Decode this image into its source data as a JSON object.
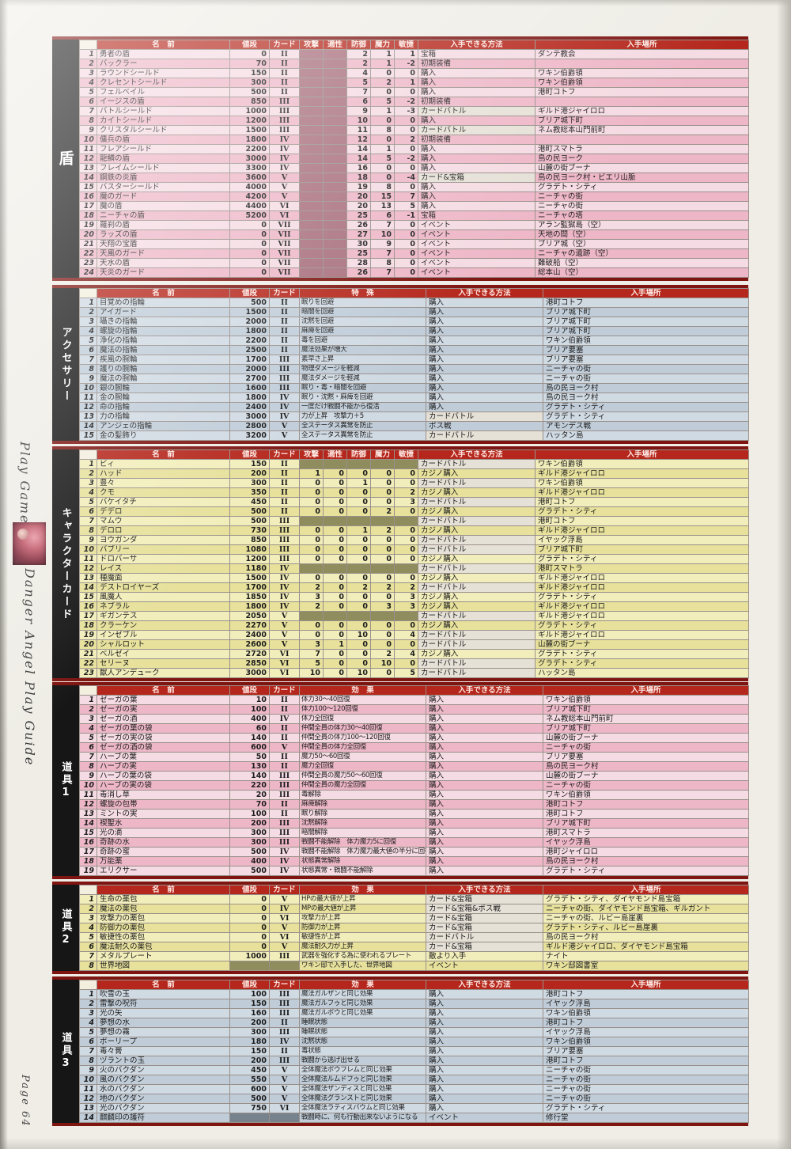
{
  "sidebar": {
    "section": "Play Game",
    "guide_title": "Danger Angel Play Guide",
    "page_label": "Page 64"
  },
  "tables": [
    {
      "id": "shields",
      "label": "盾",
      "type": "stats",
      "theme": "pink",
      "columns": [
        "名　前",
        "値段",
        "カード",
        "攻撃",
        "適性",
        "防御",
        "魔力",
        "敏捷",
        "入手できる方法",
        "入手場所"
      ],
      "rows": [
        [
          "1",
          "勇者の盾",
          "0",
          "II",
          null,
          null,
          "2",
          "1",
          "1",
          "宝箱",
          "ダンテ教会"
        ],
        [
          "2",
          "バックラー",
          "70",
          "II",
          null,
          null,
          "2",
          "1",
          "-2",
          "初期装備",
          ""
        ],
        [
          "3",
          "ラウンドシールド",
          "150",
          "II",
          null,
          null,
          "4",
          "0",
          "0",
          "購入",
          "ワキン伯爵領"
        ],
        [
          "4",
          "クレセントシールド",
          "300",
          "II",
          null,
          null,
          "5",
          "2",
          "1",
          "購入",
          "ワキン伯爵領"
        ],
        [
          "5",
          "フェルベイル",
          "500",
          "II",
          null,
          null,
          "7",
          "0",
          "0",
          "購入",
          "港町コトフ"
        ],
        [
          "6",
          "イージスの盾",
          "850",
          "III",
          null,
          null,
          "6",
          "5",
          "-2",
          "初期装備",
          ""
        ],
        [
          "7",
          "バトルシールド",
          "1000",
          "III",
          null,
          null,
          "9",
          "1",
          "-3",
          "カードバトル",
          "ギルド港ジャイロロ"
        ],
        [
          "8",
          "カイトシールド",
          "1200",
          "III",
          null,
          null,
          "10",
          "0",
          "0",
          "購入",
          "ブリア城下町"
        ],
        [
          "9",
          "クリスタルシールド",
          "1500",
          "III",
          null,
          null,
          "11",
          "8",
          "0",
          "カードバトル",
          "ネム教総本山門前町"
        ],
        [
          "10",
          "傭兵の盾",
          "1800",
          "IV",
          null,
          null,
          "12",
          "0",
          "2",
          "初期装備",
          ""
        ],
        [
          "11",
          "フレアシールド",
          "2200",
          "IV",
          null,
          null,
          "14",
          "1",
          "0",
          "購入",
          "港町スマトラ"
        ],
        [
          "12",
          "龍鱗の盾",
          "3000",
          "IV",
          null,
          null,
          "14",
          "5",
          "-2",
          "購入",
          "鳥の民ヨーク"
        ],
        [
          "13",
          "フレイムシールド",
          "3300",
          "IV",
          null,
          null,
          "16",
          "0",
          "0",
          "購入",
          "山麓の街ブーナ"
        ],
        [
          "14",
          "鋼鉄の炎盾",
          "3600",
          "V",
          null,
          null,
          "18",
          "0",
          "-4",
          "カード&宝箱",
          "鳥の民ヨーク村・ビエリ山脈"
        ],
        [
          "15",
          "バスターシールド",
          "4000",
          "V",
          null,
          null,
          "19",
          "8",
          "0",
          "購入",
          "グラデト・シティ"
        ],
        [
          "16",
          "魔のガード",
          "4200",
          "V",
          null,
          null,
          "20",
          "15",
          "7",
          "購入",
          "ニーチャの街"
        ],
        [
          "17",
          "魔の盾",
          "4400",
          "VI",
          null,
          null,
          "20",
          "13",
          "5",
          "購入",
          "ニーチャの街"
        ],
        [
          "18",
          "ニーチャの盾",
          "5200",
          "VI",
          null,
          null,
          "25",
          "6",
          "-1",
          "宝箱",
          "ニーチャの塔"
        ],
        [
          "19",
          "羅刹の盾",
          "0",
          "VII",
          null,
          null,
          "26",
          "7",
          "0",
          "イベント",
          "アラン監獄島（空）"
        ],
        [
          "20",
          "ラッズの盾",
          "0",
          "VII",
          null,
          null,
          "27",
          "10",
          "0",
          "イベント",
          "天地の間（空）"
        ],
        [
          "21",
          "天翔の宝盾",
          "0",
          "VII",
          null,
          null,
          "30",
          "9",
          "0",
          "イベント",
          "ブリア城（空）"
        ],
        [
          "22",
          "天風のガード",
          "0",
          "VII",
          null,
          null,
          "25",
          "7",
          "0",
          "イベント",
          "ニーチャの遺跡（空）"
        ],
        [
          "23",
          "天水の盾",
          "0",
          "VII",
          null,
          null,
          "28",
          "8",
          "0",
          "イベント",
          "難破船（空）"
        ],
        [
          "24",
          "天炎のガード",
          "0",
          "VII",
          null,
          null,
          "26",
          "7",
          "0",
          "イベント",
          "総本山（空）"
        ]
      ]
    },
    {
      "id": "accessories",
      "label": "アクセサリー",
      "type": "simple",
      "theme": "blue",
      "columns": [
        "名　前",
        "値段",
        "カード",
        "特　殊",
        "入手できる方法",
        "入手場所"
      ],
      "rows": [
        [
          "1",
          "目覚めの指輪",
          "500",
          "II",
          "眠りを回避",
          "購入",
          "港町コトフ"
        ],
        [
          "2",
          "アイガード",
          "1500",
          "II",
          "暗闇を回避",
          "購入",
          "ブリア城下町"
        ],
        [
          "3",
          "囁きの指輪",
          "2000",
          "II",
          "沈黙を回避",
          "購入",
          "ブリア城下町"
        ],
        [
          "4",
          "螺旋の指輪",
          "1800",
          "II",
          "麻痺を回避",
          "購入",
          "ブリア城下町"
        ],
        [
          "5",
          "浄化の指輪",
          "2200",
          "II",
          "毒を回避",
          "購入",
          "ワキン伯爵領"
        ],
        [
          "6",
          "魔法の指輪",
          "2500",
          "II",
          "魔法効果が増大",
          "購入",
          "ブリア要塞"
        ],
        [
          "7",
          "疾風の腕輪",
          "1700",
          "III",
          "素早さ上昇",
          "購入",
          "ブリア要塞"
        ],
        [
          "8",
          "護りの腕輪",
          "2000",
          "III",
          "物理ダメージを軽減",
          "購入",
          "ニーチャの街"
        ],
        [
          "9",
          "魔法の腕輪",
          "2700",
          "III",
          "魔法ダメージを軽減",
          "購入",
          "ニーチャの街"
        ],
        [
          "10",
          "銀の腕輪",
          "1600",
          "III",
          "眠り・毒・暗闇を回避",
          "購入",
          "鳥の民ヨーク村"
        ],
        [
          "11",
          "金の腕輪",
          "1800",
          "IV",
          "眠り・沈黙・麻痺を回避",
          "購入",
          "鳥の民ヨーク村"
        ],
        [
          "12",
          "命の指輪",
          "2400",
          "IV",
          "一度だけ戦闘不能から復活",
          "購入",
          "グラデト・シティ"
        ],
        [
          "13",
          "力の指輪",
          "3000",
          "IV",
          "力が上昇　攻撃力＋5",
          "カードバトル",
          "グラデト・シティ"
        ],
        [
          "14",
          "アンジェの指輪",
          "2800",
          "V",
          "全ステータス異常を防止",
          "ボス戦",
          "アモンデス戦"
        ],
        [
          "15",
          "金の髪飾り",
          "3200",
          "V",
          "全ステータス異常を防止",
          "カードバトル",
          "ハッタン島"
        ]
      ]
    },
    {
      "id": "character-cards",
      "label": "キャラクターカード",
      "type": "stats",
      "theme": "yellow",
      "columns": [
        "名　前",
        "値段",
        "カード",
        "攻撃",
        "適性",
        "防御",
        "魔力",
        "敏捷",
        "入手できる方法",
        "入手場所"
      ],
      "rows": [
        [
          "1",
          "ビィ",
          "150",
          "II",
          null,
          null,
          null,
          null,
          null,
          "カードバトル",
          "ワキン伯爵領"
        ],
        [
          "2",
          "ハッド",
          "200",
          "II",
          "1",
          "0",
          "0",
          "0",
          "0",
          "カジノ購入",
          "ギルド港ジャイロロ"
        ],
        [
          "3",
          "豊々",
          "300",
          "II",
          "0",
          "0",
          "1",
          "0",
          "0",
          "カードバトル",
          "ワキン伯爵領"
        ],
        [
          "4",
          "クモ",
          "350",
          "II",
          "0",
          "0",
          "0",
          "0",
          "2",
          "カジノ購入",
          "ギルド港ジャイロロ"
        ],
        [
          "5",
          "バケイタチ",
          "450",
          "II",
          "0",
          "0",
          "0",
          "0",
          "3",
          "カードバトル",
          "港町コトフ"
        ],
        [
          "6",
          "デデロ",
          "500",
          "II",
          "0",
          "0",
          "0",
          "2",
          "0",
          "カジノ購入",
          "グラデト・シティ"
        ],
        [
          "7",
          "マムウ",
          "500",
          "III",
          null,
          null,
          null,
          null,
          null,
          "カードバトル",
          "港町コトフ"
        ],
        [
          "8",
          "デロロ",
          "730",
          "III",
          "0",
          "0",
          "1",
          "2",
          "0",
          "カジノ購入",
          "ギルド港ジャイロロ"
        ],
        [
          "9",
          "ヨウガンダ",
          "850",
          "III",
          "0",
          "0",
          "0",
          "0",
          "0",
          "カードバトル",
          "イヤック浮島"
        ],
        [
          "10",
          "バブリー",
          "1080",
          "III",
          "0",
          "0",
          "0",
          "0",
          "0",
          "カードバトル",
          "ブリア城下町"
        ],
        [
          "11",
          "ドロバーサ",
          "1200",
          "III",
          "0",
          "0",
          "0",
          "0",
          "0",
          "カジノ購入",
          "グラデト・シティ"
        ],
        [
          "12",
          "レイス",
          "1180",
          "IV",
          null,
          null,
          null,
          null,
          null,
          "カードバトル",
          "港町スマトラ"
        ],
        [
          "13",
          "種魔面",
          "1500",
          "IV",
          "0",
          "0",
          "0",
          "0",
          "0",
          "カジノ購入",
          "ギルド港ジャイロロ"
        ],
        [
          "14",
          "デストロイヤーズ",
          "1700",
          "IV",
          "2",
          "0",
          "2",
          "2",
          "2",
          "カードバトル",
          "ギルド港ジャイロロ"
        ],
        [
          "15",
          "風魔人",
          "1850",
          "IV",
          "3",
          "0",
          "0",
          "0",
          "3",
          "カジノ購入",
          "グラデト・シティ"
        ],
        [
          "16",
          "ネブラル",
          "1800",
          "IV",
          "2",
          "0",
          "0",
          "3",
          "3",
          "カジノ購入",
          "ギルド港ジャイロロ"
        ],
        [
          "17",
          "ギガンテス",
          "2050",
          "V",
          null,
          null,
          null,
          null,
          null,
          "カードバトル",
          "ギルド港ジャイロロ"
        ],
        [
          "18",
          "クラーケン",
          "2270",
          "V",
          "0",
          "0",
          "0",
          "0",
          "0",
          "カジノ購入",
          "グラデト・シティ"
        ],
        [
          "19",
          "インゼブル",
          "2400",
          "V",
          "0",
          "0",
          "10",
          "0",
          "4",
          "カードバトル",
          "ギルド港ジャイロロ"
        ],
        [
          "20",
          "シャルロット",
          "2600",
          "V",
          "3",
          "1",
          "0",
          "0",
          "0",
          "カードバトル",
          "山麓の街ブーナ"
        ],
        [
          "21",
          "ベルゼイ",
          "2720",
          "VI",
          "7",
          "0",
          "0",
          "2",
          "4",
          "カジノ購入",
          "グラデト・シティ"
        ],
        [
          "22",
          "セリーヌ",
          "2850",
          "VI",
          "5",
          "0",
          "0",
          "10",
          "0",
          "カードバトル",
          "グラデト・シティ"
        ],
        [
          "23",
          "獣人アンデューク",
          "3000",
          "VI",
          "10",
          "0",
          "10",
          "0",
          "5",
          "カードバトル",
          "ハッタン島"
        ]
      ]
    },
    {
      "id": "items-1",
      "label": "道具1",
      "type": "simple",
      "theme": "pink",
      "columns": [
        "名　前",
        "値段",
        "カード",
        "効　果",
        "入手できる方法",
        "入手場所"
      ],
      "rows": [
        [
          "1",
          "ゼーガの葉",
          "10",
          "II",
          "体力30～40回復",
          "購入",
          "ワキン伯爵領"
        ],
        [
          "2",
          "ゼーガの実",
          "100",
          "II",
          "体力100～120回復",
          "購入",
          "ブリア城下町"
        ],
        [
          "3",
          "ゼーガの酒",
          "400",
          "IV",
          "体力全回復",
          "購入",
          "ネム教総本山門前町"
        ],
        [
          "4",
          "ゼーガの葉の袋",
          "60",
          "II",
          "仲間全員の体力30～40回復",
          "購入",
          "ブリア城下町"
        ],
        [
          "5",
          "ゼーガの実の袋",
          "140",
          "II",
          "仲間全員の体力100～120回復",
          "購入",
          "山麓の街ブーナ"
        ],
        [
          "6",
          "ゼーガの酒の袋",
          "600",
          "V",
          "仲間全員の体力全回復",
          "購入",
          "ニーチャの街"
        ],
        [
          "7",
          "ハーブの葉",
          "50",
          "II",
          "魔力50～60回復",
          "購入",
          "ブリア要塞"
        ],
        [
          "8",
          "ハーブの実",
          "130",
          "II",
          "魔力全回復",
          "購入",
          "鳥の民ヨーク村"
        ],
        [
          "9",
          "ハーブの葉の袋",
          "140",
          "III",
          "仲間全員の魔力50～60回復",
          "購入",
          "山麓の街ブーナ"
        ],
        [
          "10",
          "ハーブの実の袋",
          "220",
          "III",
          "仲間全員の魔力全回復",
          "購入",
          "ニーチャの街"
        ],
        [
          "11",
          "毒消し草",
          "20",
          "III",
          "毒解除",
          "購入",
          "ワキン伯爵領"
        ],
        [
          "12",
          "螺旋の包帯",
          "70",
          "II",
          "麻痺解除",
          "購入",
          "港町コトフ"
        ],
        [
          "13",
          "ミントの実",
          "100",
          "II",
          "眠り解除",
          "購入",
          "港町コトフ"
        ],
        [
          "14",
          "禊聖水",
          "200",
          "III",
          "沈黙解除",
          "購入",
          "ブリア城下町"
        ],
        [
          "15",
          "光の滴",
          "300",
          "III",
          "暗闇解除",
          "購入",
          "港町スマトラ"
        ],
        [
          "16",
          "奇跡の水",
          "300",
          "III",
          "戦闘不能解除　体力魔力5に回復",
          "購入",
          "イヤック浮島"
        ],
        [
          "17",
          "奇跡の蜜",
          "500",
          "IV",
          "戦闘不能解除　体力魔力最大値の半分に回復",
          "購入",
          "港町ジャイロロ"
        ],
        [
          "18",
          "万能薬",
          "400",
          "IV",
          "状態異常解除",
          "購入",
          "鳥の民ヨーク村"
        ],
        [
          "19",
          "エリクサー",
          "500",
          "IV",
          "状態異常・戦闘不能解除",
          "購入",
          "グラデト・シティ"
        ]
      ]
    },
    {
      "id": "items-2",
      "label": "道具2",
      "type": "simple",
      "theme": "yellow",
      "columns": [
        "名　前",
        "値段",
        "カード",
        "効　果",
        "入手できる方法",
        "入手場所"
      ],
      "rows": [
        [
          "1",
          "生命の薬包",
          "0",
          "V",
          "HPの最大値が上昇",
          "カード&宝箱",
          "グラデト・シティ、ダイヤモンド島宝箱"
        ],
        [
          "2",
          "魔法の薬包",
          "0",
          "IV",
          "MPの最大値が上昇",
          "カード&宝箱&ボス戦",
          "ニーチャの街、ダイヤモンド島宝箱、ギルガント"
        ],
        [
          "3",
          "攻撃力の薬包",
          "0",
          "VI",
          "攻撃力が上昇",
          "カード&宝箱",
          "ニーチャの街、ルビー島崖裏"
        ],
        [
          "4",
          "防御力の薬包",
          "0",
          "V",
          "防御力が上昇",
          "カード&宝箱",
          "グラデト・シティ、ルビー島崖裏"
        ],
        [
          "5",
          "敏捷性の薬包",
          "0",
          "VI",
          "敏捷性が上昇",
          "カードバトル",
          "鳥の民ヨーク村"
        ],
        [
          "6",
          "魔法耐久の薬包",
          "0",
          "V",
          "魔法耐久力が上昇",
          "カード&宝箱",
          "ギルド港ジャイロロ、ダイヤモンド島宝箱"
        ],
        [
          "7",
          "メタルプレート",
          "1000",
          "III",
          "武器を強化する為に使われるプレート",
          "敵より入手",
          "ナイト"
        ],
        [
          "8",
          "世界地図",
          null,
          null,
          "ワキン邸で入手した、世界地図",
          "イベント",
          "ワキン邸図書室"
        ]
      ]
    },
    {
      "id": "items-3",
      "label": "道具3",
      "type": "simple",
      "theme": "blue",
      "columns": [
        "名　前",
        "値段",
        "カード",
        "効　果",
        "入手できる方法",
        "入手場所"
      ],
      "rows": [
        [
          "1",
          "吹雪の玉",
          "100",
          "III",
          "魔法ガルザンと同じ効果",
          "購入",
          "港町コトフ"
        ],
        [
          "2",
          "雷撃の呪符",
          "150",
          "III",
          "魔法ガルフゥと同じ効果",
          "購入",
          "イヤック浮島"
        ],
        [
          "3",
          "光の矢",
          "160",
          "III",
          "魔法ガルボウと同じ効果",
          "購入",
          "ワキン伯爵領"
        ],
        [
          "4",
          "夢想の水",
          "200",
          "II",
          "睡眠状態",
          "購入",
          "港町コトフ"
        ],
        [
          "5",
          "夢想の霧",
          "300",
          "III",
          "睡眠状態",
          "購入",
          "イヤック浮島"
        ],
        [
          "6",
          "ポーリープ",
          "180",
          "IV",
          "沈黙状態",
          "購入",
          "ワキン伯爵領"
        ],
        [
          "7",
          "毒々膏",
          "150",
          "II",
          "毒状態",
          "購入",
          "ブリア要塞"
        ],
        [
          "8",
          "ヅラントの玉",
          "200",
          "III",
          "戦闘から逃げ出せる",
          "購入",
          "港町コトフ"
        ],
        [
          "9",
          "火のバクダン",
          "450",
          "V",
          "全体魔法ボウフレムと同じ効果",
          "購入",
          "ニーチャの街"
        ],
        [
          "10",
          "風のバクダン",
          "550",
          "V",
          "全体魔法ルムドフゥと同じ効果",
          "購入",
          "ニーチャの街"
        ],
        [
          "11",
          "水のバクダン",
          "600",
          "V",
          "全体魔法ザンディスと同じ効果",
          "購入",
          "ニーチャの街"
        ],
        [
          "12",
          "地のバクダン",
          "500",
          "V",
          "全体魔法グランストと同じ効果",
          "購入",
          "ニーチャの街"
        ],
        [
          "13",
          "光のバクダン",
          "750",
          "VI",
          "全体魔法ラティスバウムと同じ効果",
          "購入",
          "グラデト・シティ"
        ],
        [
          "14",
          "麒麟印の護符",
          null,
          null,
          "戦闘時に、何も行動出来ないようになる",
          "イベント",
          "修行堂"
        ]
      ]
    }
  ]
}
